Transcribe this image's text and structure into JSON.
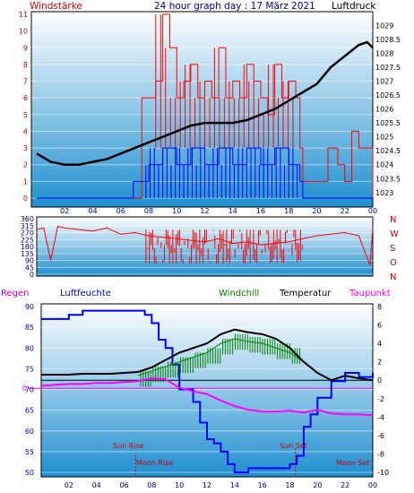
{
  "header": {
    "left_label": "Windstärke",
    "title": "24 hour graph day : 17 März 2021",
    "right_label": "Luftdruck"
  },
  "colors": {
    "wind_gust": "#ff0000",
    "wind_avg": "#0000ff",
    "pressure": "#000000",
    "direction": "#ff0000",
    "humidity": "#0000ff",
    "windchill": "#008000",
    "temperature": "#000000",
    "dewpoint": "#ff00ff",
    "sun_marker": "#cc0000",
    "plot_top": "#ffffff",
    "plot_bottom": "#1f8fd0"
  },
  "chart_data": [
    {
      "type": "line",
      "title": "24 hour graph day : 17 März 2021",
      "x_ticks": [
        "02",
        "04",
        "06",
        "08",
        "10",
        "12",
        "14",
        "16",
        "18",
        "20",
        "22",
        "00"
      ],
      "left_axis": {
        "label": "Windstärke",
        "ylim": [
          0,
          11
        ],
        "ticks": [
          0,
          1,
          2,
          3,
          4,
          5,
          6,
          7,
          8,
          9,
          10,
          11
        ]
      },
      "right_axis": {
        "label": "Luftdruck",
        "ylim": [
          1082.8,
          1029.6
        ],
        "ticks": [
          "1029",
          "1028.5",
          "1028",
          "1027.5",
          "1027",
          "1026.5",
          "1026",
          "1025.5",
          "1025",
          "1024.5",
          "1024",
          "1023.5",
          "1023"
        ]
      },
      "series": [
        {
          "name": "Luftdruck",
          "axis": "right",
          "x_hours": [
            0,
            1,
            2,
            3,
            4,
            5,
            6,
            7,
            8,
            9,
            10,
            11,
            12,
            13,
            14,
            15,
            16,
            17,
            18,
            19,
            20,
            21,
            22,
            23,
            23.6,
            24
          ],
          "values": [
            1024.4,
            1024.1,
            1024.0,
            1024.0,
            1024.1,
            1024.2,
            1024.4,
            1024.6,
            1024.8,
            1025.0,
            1025.2,
            1025.4,
            1025.5,
            1025.5,
            1025.5,
            1025.6,
            1025.8,
            1026.0,
            1026.3,
            1026.6,
            1026.9,
            1027.5,
            1027.9,
            1028.3,
            1028.4,
            1028.2
          ]
        },
        {
          "name": "Wind gust",
          "axis": "left",
          "x_hours": [
            0,
            6.9,
            7.5,
            8,
            8.5,
            9,
            9.5,
            10,
            10.5,
            11,
            11.5,
            12,
            12.5,
            13,
            13.5,
            14,
            14.5,
            15,
            15.5,
            16,
            16.5,
            17,
            17.5,
            18,
            18.5,
            18.8,
            19,
            20,
            20.8,
            21.5,
            22,
            22.5,
            23,
            23.5,
            24
          ],
          "values": [
            0,
            0,
            6,
            6,
            7,
            11,
            9,
            6,
            7,
            8,
            6,
            7,
            6,
            9,
            6,
            7,
            6,
            8,
            7,
            6,
            5,
            8,
            6,
            7,
            6,
            3,
            1,
            1,
            3,
            2,
            1,
            4,
            3,
            3,
            0
          ]
        },
        {
          "name": "Wind average",
          "axis": "left",
          "x_hours": [
            0,
            6.9,
            8,
            9,
            10,
            11,
            12,
            13,
            14,
            15,
            16,
            17,
            18,
            18.8,
            19,
            24
          ],
          "values": [
            0,
            1,
            2,
            3,
            2,
            3,
            2,
            3,
            2,
            3,
            2,
            3,
            2,
            1,
            0,
            0
          ]
        }
      ]
    },
    {
      "type": "line",
      "x_ticks": [
        "02",
        "04",
        "06",
        "08",
        "10",
        "12",
        "14",
        "16",
        "18",
        "20",
        "22",
        "00"
      ],
      "left_axis": {
        "ylim": [
          0,
          360
        ],
        "ticks": [
          0,
          45,
          90,
          135,
          180,
          225,
          270,
          315,
          360
        ]
      },
      "right_labels": [
        "N",
        "W",
        "S",
        "O",
        "N"
      ],
      "series": [
        {
          "name": "Wind direction",
          "x_hours": [
            0,
            0.5,
            1,
            1.5,
            2,
            3,
            4,
            5,
            6,
            7,
            8,
            9,
            10,
            11,
            12,
            13,
            14,
            15,
            16,
            17,
            18,
            19,
            20,
            21,
            22,
            23,
            23.8,
            24
          ],
          "values": [
            290,
            300,
            90,
            310,
            300,
            290,
            280,
            300,
            260,
            270,
            250,
            240,
            230,
            220,
            210,
            230,
            200,
            210,
            190,
            200,
            210,
            230,
            250,
            260,
            270,
            250,
            60,
            300
          ]
        }
      ]
    },
    {
      "type": "line",
      "legend": [
        "Regen",
        "Luftfeuchte",
        "Windchill",
        "Temperatur",
        "Taupunkt"
      ],
      "x_ticks": [
        "02",
        "04",
        "06",
        "08",
        "10",
        "12",
        "14",
        "16",
        "18",
        "20",
        "22",
        "00"
      ],
      "left_axis": {
        "ylim": [
          50,
          91
        ],
        "ticks": [
          50,
          55,
          60,
          65,
          70,
          75,
          80,
          85,
          90
        ]
      },
      "right_axis": {
        "ylim": [
          -10.5,
          8.3
        ],
        "ticks": [
          8,
          6,
          4,
          2,
          0,
          -2,
          -4,
          -6,
          -8,
          -10
        ]
      },
      "annotations": [
        "Sun Rise",
        "Moon Rise",
        "Sun Set",
        "Moon Set"
      ],
      "series": [
        {
          "name": "Luftfeuchte",
          "axis": "left",
          "x_hours": [
            0,
            1,
            2,
            3,
            4,
            5,
            6,
            7,
            7.5,
            8,
            8.5,
            9,
            9.5,
            10,
            10.5,
            11,
            11.5,
            12,
            12.5,
            13,
            13.5,
            14,
            15,
            16,
            17,
            18,
            18.5,
            19,
            19.5,
            20,
            21,
            22,
            23,
            24
          ],
          "values": [
            87,
            87,
            88,
            89,
            89,
            89,
            89,
            89,
            88,
            86,
            82,
            80,
            76,
            70,
            70,
            67,
            62,
            58,
            57,
            55,
            52,
            50,
            51,
            51,
            51,
            52,
            54,
            61,
            64,
            68,
            72,
            74,
            73,
            74
          ]
        },
        {
          "name": "Temperatur",
          "axis": "right",
          "x_hours": [
            0,
            1,
            2,
            3,
            4,
            5,
            6,
            7,
            8,
            9,
            10,
            11,
            12,
            13,
            14,
            15,
            16,
            17,
            18,
            19,
            20,
            21,
            22,
            23,
            24
          ],
          "values": [
            0.6,
            0.6,
            0.6,
            0.7,
            0.7,
            0.7,
            0.8,
            0.9,
            1.4,
            2.2,
            3.0,
            3.5,
            4.0,
            5.0,
            5.5,
            5.2,
            5.0,
            4.5,
            3.5,
            2.0,
            0.8,
            0.0,
            0.5,
            0.2,
            0.0
          ]
        },
        {
          "name": "Windchill",
          "axis": "right",
          "x_hours": [
            7,
            8,
            9,
            10,
            11,
            12,
            13,
            14,
            15,
            16,
            17,
            18,
            19
          ],
          "values": [
            0.5,
            1.0,
            1.5,
            2.0,
            2.5,
            3.0,
            4.0,
            4.5,
            4.2,
            4.0,
            3.5,
            3.0,
            2.0
          ]
        },
        {
          "name": "Taupunkt",
          "axis": "right",
          "x_hours": [
            0,
            1,
            2,
            3,
            4,
            5,
            6,
            7,
            8,
            9,
            10,
            11,
            12,
            13,
            14,
            15,
            16,
            17,
            18,
            19,
            20,
            21,
            22,
            23,
            24
          ],
          "values": [
            -0.6,
            -0.5,
            -0.4,
            -0.4,
            -0.3,
            -0.3,
            -0.2,
            -0.1,
            0.2,
            0.1,
            -0.8,
            -1.2,
            -1.5,
            -2.2,
            -2.8,
            -3.2,
            -3.4,
            -3.4,
            -3.3,
            -3.5,
            -3.2,
            -3.6,
            -3.7,
            -3.7,
            -3.8
          ]
        }
      ],
      "events": [
        {
          "label": "Sun Rise",
          "x_hour": 6.7
        },
        {
          "label": "Moon Rise",
          "x_hour": 6.7
        },
        {
          "label": "Sun Set",
          "x_hour": 18.4
        },
        {
          "label": "Moon Set",
          "x_hour": 24
        }
      ]
    }
  ]
}
